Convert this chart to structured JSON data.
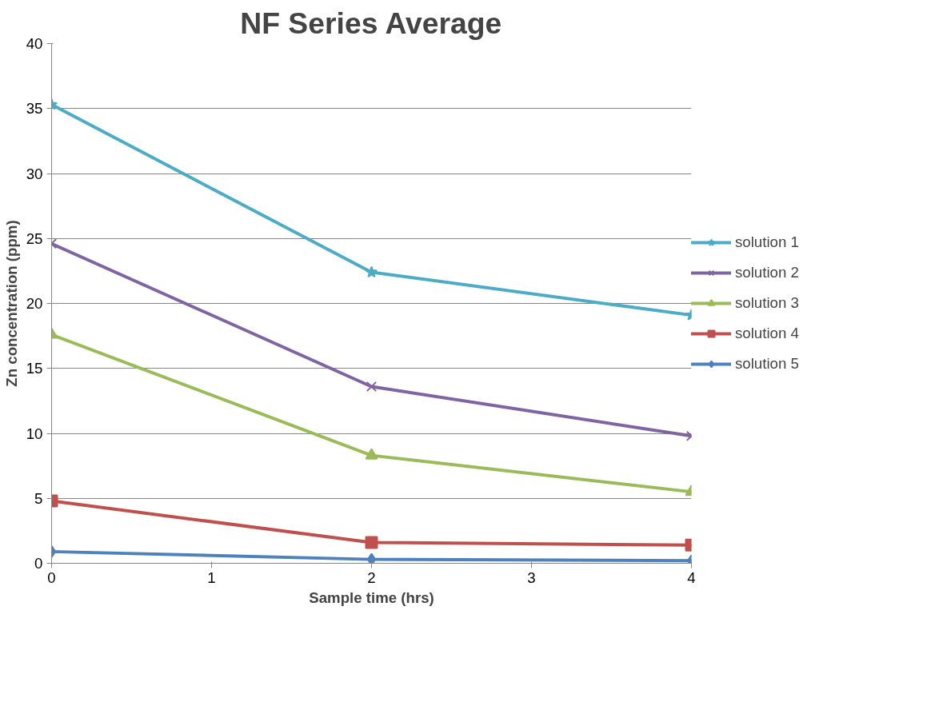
{
  "chart_data": {
    "type": "line",
    "title": "NF Series Average",
    "xlabel": "Sample time (hrs)",
    "ylabel": "Zn concentration (ppm)",
    "x": [
      0,
      2,
      4
    ],
    "xlim": [
      0,
      4
    ],
    "xticks": [
      0,
      1,
      2,
      3,
      4
    ],
    "ylim": [
      0,
      40
    ],
    "yticks": [
      0,
      5,
      10,
      15,
      20,
      25,
      30,
      35,
      40
    ],
    "grid": "y",
    "legend": "right",
    "line_style": "solid",
    "series": [
      {
        "name": "solution 1",
        "color": "#4bacc6",
        "marker": "star",
        "values": [
          35.3,
          22.4,
          19.1
        ]
      },
      {
        "name": "solution 2",
        "color": "#8064a2",
        "marker": "cross",
        "values": [
          24.6,
          13.6,
          9.8
        ]
      },
      {
        "name": "solution 3",
        "color": "#9bbb59",
        "marker": "triangle",
        "values": [
          17.6,
          8.3,
          5.5
        ]
      },
      {
        "name": "solution 4",
        "color": "#c0504d",
        "marker": "square",
        "values": [
          4.8,
          1.6,
          1.4
        ]
      },
      {
        "name": "solution 5",
        "color": "#4f81bd",
        "marker": "diamond",
        "values": [
          0.9,
          0.3,
          0.2
        ]
      }
    ]
  }
}
